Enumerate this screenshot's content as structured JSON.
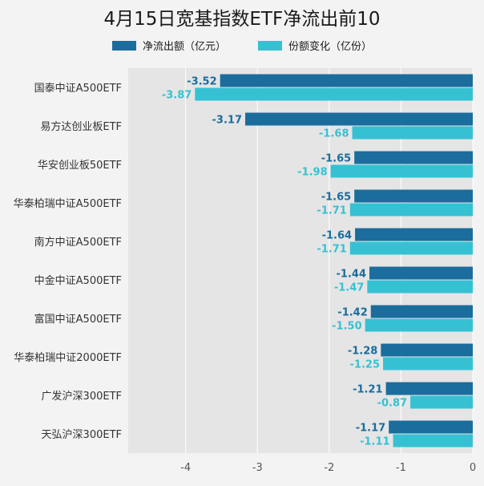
{
  "colors": {
    "net_outflow": "#1a6d9c",
    "share_change": "#36c1d3",
    "plot_bg": "#e5e5e5",
    "page_bg": "#f3f3f3"
  },
  "chart_data": {
    "type": "bar",
    "orientation": "horizontal",
    "title": "4月15日宽基指数ETF净流出前10",
    "categories": [
      "国泰中证A500ETF",
      "易方达创业板ETF",
      "华安创业板50ETF",
      "华泰柏瑞中证A500ETF",
      "南方中证A500ETF",
      "中金中证A500ETF",
      "富国中证A500ETF",
      "华泰柏瑞中证2000ETF",
      "广发沪深300ETF",
      "天弘沪深300ETF"
    ],
    "series": [
      {
        "name": "净流出额（亿元）",
        "values": [
          -3.52,
          -3.17,
          -1.65,
          -1.65,
          -1.64,
          -1.44,
          -1.42,
          -1.28,
          -1.21,
          -1.17
        ]
      },
      {
        "name": "份额变化（亿份）",
        "values": [
          -3.87,
          -1.68,
          -1.98,
          -1.71,
          -1.71,
          -1.47,
          -1.5,
          -1.25,
          -0.87,
          -1.11
        ]
      }
    ],
    "xlim": [
      -4.8,
      0
    ],
    "xticks": [
      -4,
      -3,
      -2,
      -1,
      0
    ],
    "grid": true,
    "legend_position": "top"
  }
}
